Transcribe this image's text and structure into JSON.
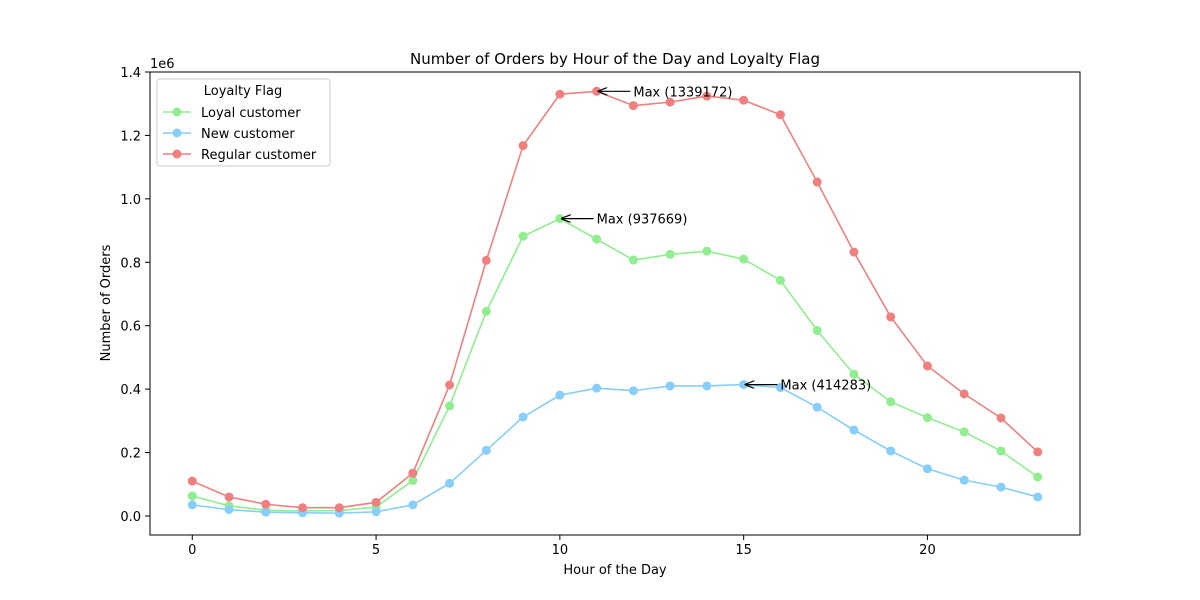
{
  "chart_data": {
    "type": "line",
    "title": "Number of Orders by Hour of the Day and Loyalty Flag",
    "xlabel": "Hour of the Day",
    "ylabel": "Number of Orders",
    "y_scale_label": "1e6",
    "xlim": [
      -1.15,
      24.15
    ],
    "ylim": [
      -0.06,
      1.4
    ],
    "y_multiplier": 1000000,
    "x_ticks": [
      0,
      5,
      10,
      15,
      20
    ],
    "y_ticks": [
      0.0,
      0.2,
      0.4,
      0.6,
      0.8,
      1.0,
      1.2,
      1.4
    ],
    "y_tick_labels": [
      "0.0",
      "0.2",
      "0.4",
      "0.6",
      "0.8",
      "1.0",
      "1.2",
      "1.4"
    ],
    "grid": false,
    "legend": {
      "title": "Loyalty Flag",
      "placement": "top-left"
    },
    "x": [
      0,
      1,
      2,
      3,
      4,
      5,
      6,
      7,
      8,
      9,
      10,
      11,
      12,
      13,
      14,
      15,
      16,
      17,
      18,
      19,
      20,
      21,
      22,
      23
    ],
    "series": [
      {
        "name": "Loyal customer",
        "color": "#90ee90",
        "values": [
          0.063,
          0.032,
          0.018,
          0.016,
          0.017,
          0.028,
          0.112,
          0.347,
          0.645,
          0.882,
          0.937669,
          0.873,
          0.807,
          0.825,
          0.835,
          0.81,
          0.743,
          0.585,
          0.447,
          0.36,
          0.31,
          0.265,
          0.205,
          0.123
        ]
      },
      {
        "name": "New customer",
        "color": "#87cefa",
        "values": [
          0.035,
          0.02,
          0.012,
          0.01,
          0.009,
          0.013,
          0.035,
          0.103,
          0.207,
          0.312,
          0.381,
          0.403,
          0.395,
          0.41,
          0.41,
          0.414283,
          0.405,
          0.343,
          0.271,
          0.205,
          0.149,
          0.113,
          0.091,
          0.06
        ]
      },
      {
        "name": "Regular customer",
        "color": "#f08080",
        "values": [
          0.11,
          0.06,
          0.037,
          0.026,
          0.026,
          0.043,
          0.135,
          0.413,
          0.806,
          1.168,
          1.33,
          1.339172,
          1.294,
          1.305,
          1.324,
          1.311,
          1.265,
          1.053,
          0.832,
          0.628,
          0.473,
          0.385,
          0.309,
          0.202
        ]
      }
    ],
    "annotations": [
      {
        "text": "Max (937669)",
        "x": 10,
        "y": 0.937669,
        "text_x": 11,
        "text_y": 0.937669
      },
      {
        "text": "Max (414283)",
        "x": 15,
        "y": 0.414283,
        "text_x": 16,
        "text_y": 0.414283
      },
      {
        "text": "Max (1339172)",
        "x": 11,
        "y": 1.339172,
        "text_x": 12,
        "text_y": 1.339172
      }
    ]
  }
}
